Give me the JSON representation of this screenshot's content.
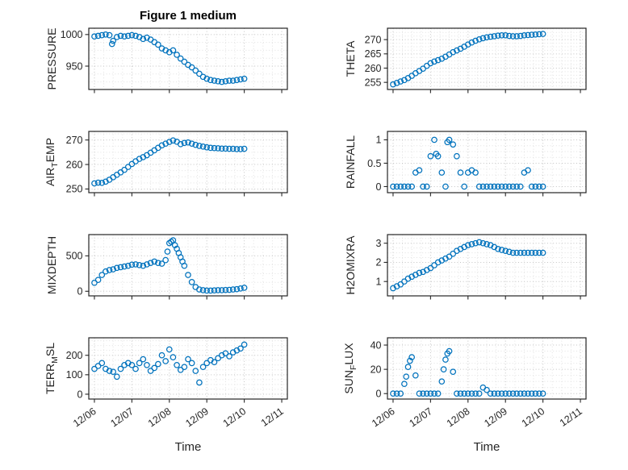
{
  "figure": {
    "title": "Figure 1 medium",
    "xlabel": "Time",
    "marker_color": "#0072BD",
    "axis_color": "#262626",
    "grid_major_color": "#c3c3c3",
    "grid_minor_color": "#e2e2e2",
    "background": "#ffffff"
  },
  "axes": {
    "xlim": [
      5.85,
      11.15
    ],
    "xticks": [
      6,
      7,
      8,
      9,
      10,
      11
    ],
    "xtick_labels": [
      "12/06",
      "12/07",
      "12/08",
      "12/09",
      "12/10",
      "12/11"
    ],
    "x_minor_step": 0.25
  },
  "chart_data": [
    {
      "type": "scatter",
      "name": "PRESSURE",
      "ylabel_parts": [
        {
          "text": "PRESSURE"
        }
      ],
      "yticks": [
        950,
        1000
      ],
      "ytick_labels": [
        "950",
        "1000"
      ],
      "ylim": [
        913,
        1010
      ],
      "show_xticklabels": false,
      "x_start": 6.0,
      "x_step": 0.1,
      "y": [
        997,
        998,
        999,
        1000,
        999,
        990,
        996,
        998,
        997,
        998,
        999,
        998,
        996,
        993,
        995,
        992,
        988,
        984,
        978,
        975,
        972,
        975,
        968,
        962,
        957,
        952,
        948,
        943,
        938,
        933,
        930,
        928,
        927,
        926,
        925,
        926,
        927,
        927,
        928,
        929,
        930
      ],
      "extra_xy": [
        [
          6.47,
          985
        ]
      ]
    },
    {
      "type": "scatter",
      "name": "THETA",
      "ylabel_parts": [
        {
          "text": "THETA"
        }
      ],
      "yticks": [
        255,
        260,
        265,
        270
      ],
      "ytick_labels": [
        "255",
        "260",
        "265",
        "270"
      ],
      "ylim": [
        252.5,
        274
      ],
      "show_xticklabels": false,
      "x_start": 6.0,
      "x_step": 0.1,
      "y": [
        254.3,
        254.8,
        255.3,
        255.8,
        256.5,
        257.3,
        258.2,
        259,
        259.8,
        260.8,
        261.7,
        262.3,
        262.8,
        263.3,
        264,
        264.8,
        265.6,
        266.2,
        266.8,
        267.5,
        268.3,
        269,
        269.6,
        270.1,
        270.5,
        270.8,
        271,
        271.2,
        271.4,
        271.5,
        271.5,
        271.3,
        271.2,
        271.2,
        271.3,
        271.5,
        271.6,
        271.7,
        271.8,
        271.9,
        272
      ],
      "extra_xy": []
    },
    {
      "type": "scatter",
      "name": "AIR_TEMP",
      "ylabel_parts": [
        {
          "text": "AIR"
        },
        {
          "sub": "T"
        },
        {
          "text": "EMP"
        }
      ],
      "yticks": [
        250,
        260,
        270
      ],
      "ytick_labels": [
        "250",
        "260",
        "270"
      ],
      "ylim": [
        248.5,
        273.5
      ],
      "show_xticklabels": false,
      "x_start": 6.0,
      "x_step": 0.1,
      "y": [
        252.3,
        252.6,
        252.5,
        253,
        253.8,
        254.8,
        255.8,
        256.8,
        257.8,
        259,
        260.2,
        261.3,
        262.3,
        263,
        263.8,
        264.8,
        265.8,
        266.8,
        267.8,
        268.5,
        269.2,
        269.8,
        269.3,
        268.3,
        268.8,
        269,
        268.5,
        268,
        267.6,
        267.3,
        267,
        266.8,
        266.7,
        266.6,
        266.5,
        266.5,
        266.4,
        266.4,
        266.3,
        266.3,
        266.4
      ],
      "extra_xy": []
    },
    {
      "type": "scatter",
      "name": "RAINFALL",
      "ylabel_parts": [
        {
          "text": "RAINFALL"
        }
      ],
      "yticks": [
        0,
        0.5,
        1
      ],
      "ytick_labels": [
        "0",
        "0.5",
        "1"
      ],
      "ylim": [
        -0.13,
        1.18
      ],
      "show_xticklabels": false,
      "x_start": 6.0,
      "x_step": 0.1,
      "y": [
        0,
        0,
        0,
        0,
        0,
        0,
        0.3,
        0.35,
        0,
        0,
        0.65,
        1,
        0.65,
        0.3,
        0,
        1,
        0.9,
        0.65,
        0.3,
        0,
        0.3,
        0.35,
        0.3,
        0,
        0,
        0,
        0,
        0,
        0,
        0,
        0,
        0,
        0,
        0,
        0,
        0.3,
        0.35,
        0,
        0,
        0,
        0
      ],
      "extra_xy": [
        [
          7.15,
          0.7
        ],
        [
          7.45,
          0.95
        ]
      ]
    },
    {
      "type": "scatter",
      "name": "MIXDEPTH",
      "ylabel_parts": [
        {
          "text": "MIXDEPTH"
        }
      ],
      "yticks": [
        0,
        500
      ],
      "ytick_labels": [
        "0",
        "500"
      ],
      "ylim": [
        -65,
        800
      ],
      "show_xticklabels": false,
      "x_start": 6.0,
      "x_step": 0.1,
      "y": [
        120,
        160,
        230,
        280,
        300,
        310,
        330,
        340,
        350,
        360,
        375,
        380,
        370,
        360,
        380,
        400,
        420,
        400,
        390,
        440,
        680,
        720,
        600,
        480,
        360,
        230,
        130,
        60,
        25,
        15,
        10,
        10,
        12,
        15,
        15,
        18,
        20,
        25,
        30,
        40,
        50
      ],
      "extra_xy": [
        [
          7.95,
          560
        ],
        [
          8.05,
          700
        ],
        [
          8.15,
          650
        ],
        [
          8.25,
          540
        ],
        [
          8.35,
          420
        ]
      ]
    },
    {
      "type": "scatter",
      "name": "H2OMIXRA",
      "ylabel_parts": [
        {
          "text": "H2OMIXRA"
        }
      ],
      "yticks": [
        1,
        2,
        3
      ],
      "ytick_labels": [
        "1",
        "2",
        "3"
      ],
      "ylim": [
        0.25,
        3.45
      ],
      "show_xticklabels": false,
      "x_start": 6.0,
      "x_step": 0.1,
      "y": [
        0.65,
        0.75,
        0.85,
        1,
        1.15,
        1.25,
        1.35,
        1.45,
        1.5,
        1.6,
        1.7,
        1.85,
        2,
        2.1,
        2.2,
        2.3,
        2.45,
        2.6,
        2.7,
        2.8,
        2.9,
        2.95,
        3,
        3.05,
        3,
        2.95,
        2.9,
        2.8,
        2.7,
        2.65,
        2.6,
        2.55,
        2.5,
        2.5,
        2.5,
        2.5,
        2.5,
        2.5,
        2.5,
        2.5,
        2.5
      ],
      "extra_xy": []
    },
    {
      "type": "scatter",
      "name": "TERR_MSL",
      "ylabel_parts": [
        {
          "text": "TERR"
        },
        {
          "sub": "M"
        },
        {
          "text": "SL"
        }
      ],
      "yticks": [
        0,
        100,
        200
      ],
      "ytick_labels": [
        "0",
        "100",
        "200"
      ],
      "ylim": [
        -25,
        290
      ],
      "show_xticklabels": true,
      "x_start": 6.0,
      "x_step": 0.1,
      "y": [
        130,
        145,
        160,
        130,
        120,
        115,
        90,
        130,
        150,
        160,
        150,
        130,
        160,
        180,
        150,
        120,
        135,
        155,
        200,
        170,
        230,
        190,
        150,
        125,
        140,
        180,
        160,
        120,
        60,
        140,
        160,
        175,
        165,
        185,
        200,
        210,
        195,
        215,
        225,
        235,
        255
      ],
      "extra_xy": []
    },
    {
      "type": "scatter",
      "name": "SUN_FLUX",
      "ylabel_parts": [
        {
          "text": "SUN"
        },
        {
          "sub": "F"
        },
        {
          "text": "LUX"
        }
      ],
      "yticks": [
        0,
        20,
        40
      ],
      "ytick_labels": [
        "0",
        "20",
        "40"
      ],
      "ylim": [
        -4.5,
        46
      ],
      "show_xticklabels": true,
      "x_start": 6.0,
      "x_step": 0.1,
      "y": [
        0,
        0,
        0,
        8,
        22,
        30,
        15,
        0,
        0,
        0,
        0,
        0,
        0,
        10,
        28,
        35,
        18,
        0,
        0,
        0,
        0,
        0,
        0,
        0,
        5,
        3,
        0,
        0,
        0,
        0,
        0,
        0,
        0,
        0,
        0,
        0,
        0,
        0,
        0,
        0,
        0
      ],
      "extra_xy": [
        [
          6.35,
          14
        ],
        [
          6.45,
          27
        ],
        [
          7.35,
          20
        ],
        [
          7.45,
          33
        ]
      ]
    }
  ]
}
